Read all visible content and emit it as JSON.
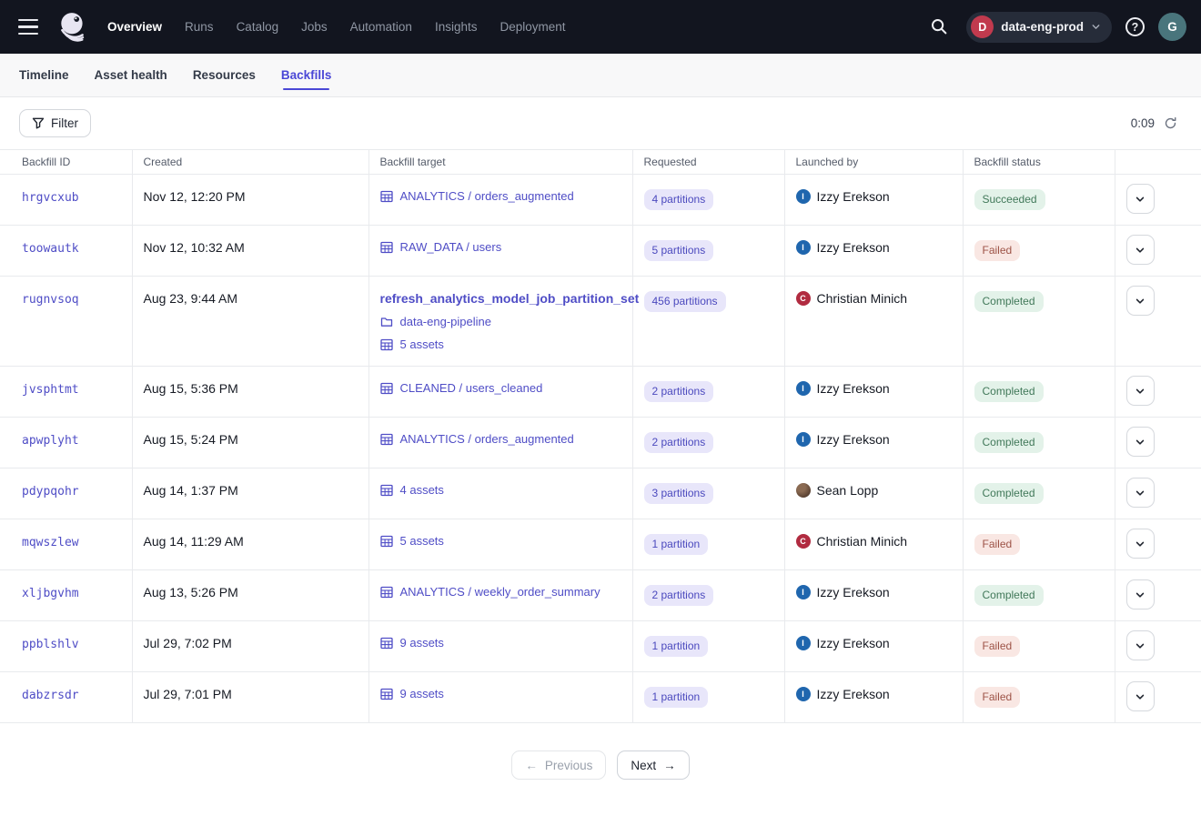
{
  "colors": {
    "topnav_bg": "#12151F",
    "accent": "#4A47D6",
    "link": "#4F4DC6",
    "requested_pill_bg": "#E8E6FA",
    "success_pill_bg": "#E3F2E9",
    "success_pill_text": "#42795A",
    "failed_pill_bg": "#F9E7E3",
    "failed_pill_text": "#9D5347",
    "deployment_badge": "#C13A4E",
    "user_avatar_bg": "#49757C"
  },
  "topnav": {
    "items": [
      {
        "label": "Overview",
        "active": true
      },
      {
        "label": "Runs",
        "active": false
      },
      {
        "label": "Catalog",
        "active": false
      },
      {
        "label": "Jobs",
        "active": false
      },
      {
        "label": "Automation",
        "active": false
      },
      {
        "label": "Insights",
        "active": false
      },
      {
        "label": "Deployment",
        "active": false
      }
    ],
    "deployment": {
      "initial": "D",
      "name": "data-eng-prod"
    },
    "avatar_initial": "G"
  },
  "tabs": [
    {
      "label": "Timeline",
      "active": false
    },
    {
      "label": "Asset health",
      "active": false
    },
    {
      "label": "Resources",
      "active": false
    },
    {
      "label": "Backfills",
      "active": true
    }
  ],
  "toolbar": {
    "filter_label": "Filter",
    "timer": "0:09"
  },
  "table": {
    "columns": [
      "Backfill ID",
      "Created",
      "Backfill target",
      "Requested",
      "Launched by",
      "Backfill status",
      ""
    ],
    "rows": [
      {
        "id": "hrgvcxub",
        "created": "Nov 12, 12:20 PM",
        "target": [
          {
            "icon": "asset-table",
            "text": "ANALYTICS / orders_augmented"
          }
        ],
        "requested": "4 partitions",
        "launched_by": {
          "name": "Izzy Erekson",
          "avatar": "initial",
          "initial": "I",
          "color": "#1F66AE"
        },
        "status": {
          "label": "Succeeded",
          "kind": "success"
        }
      },
      {
        "id": "toowautk",
        "created": "Nov 12, 10:32 AM",
        "target": [
          {
            "icon": "asset-table",
            "text": "RAW_DATA / users"
          }
        ],
        "requested": "5 partitions",
        "launched_by": {
          "name": "Izzy Erekson",
          "avatar": "initial",
          "initial": "I",
          "color": "#1F66AE"
        },
        "status": {
          "label": "Failed",
          "kind": "failed"
        }
      },
      {
        "id": "rugnvsoq",
        "created": "Aug 23, 9:44 AM",
        "target": [
          {
            "icon": null,
            "text": "refresh_analytics_model_job_partition_set",
            "bold": true
          },
          {
            "icon": "folder",
            "text": "data-eng-pipeline"
          },
          {
            "icon": "asset-table",
            "text": "5 assets"
          }
        ],
        "requested": "456 partitions",
        "launched_by": {
          "name": "Christian Minich",
          "avatar": "initial",
          "initial": "C",
          "color": "#B12B40"
        },
        "status": {
          "label": "Completed",
          "kind": "success"
        }
      },
      {
        "id": "jvsphtmt",
        "created": "Aug 15, 5:36 PM",
        "target": [
          {
            "icon": "asset-table",
            "text": "CLEANED / users_cleaned"
          }
        ],
        "requested": "2 partitions",
        "launched_by": {
          "name": "Izzy Erekson",
          "avatar": "initial",
          "initial": "I",
          "color": "#1F66AE"
        },
        "status": {
          "label": "Completed",
          "kind": "success"
        }
      },
      {
        "id": "apwplyht",
        "created": "Aug 15, 5:24 PM",
        "target": [
          {
            "icon": "asset-table",
            "text": "ANALYTICS / orders_augmented"
          }
        ],
        "requested": "2 partitions",
        "launched_by": {
          "name": "Izzy Erekson",
          "avatar": "initial",
          "initial": "I",
          "color": "#1F66AE"
        },
        "status": {
          "label": "Completed",
          "kind": "success"
        }
      },
      {
        "id": "pdypqohr",
        "created": "Aug 14, 1:37 PM",
        "target": [
          {
            "icon": "asset-table",
            "text": "4 assets"
          }
        ],
        "requested": "3 partitions",
        "launched_by": {
          "name": "Sean Lopp",
          "avatar": "photo"
        },
        "status": {
          "label": "Completed",
          "kind": "success"
        }
      },
      {
        "id": "mqwszlew",
        "created": "Aug 14, 11:29 AM",
        "target": [
          {
            "icon": "asset-table",
            "text": "5 assets"
          }
        ],
        "requested": "1 partition",
        "launched_by": {
          "name": "Christian Minich",
          "avatar": "initial",
          "initial": "C",
          "color": "#B12B40"
        },
        "status": {
          "label": "Failed",
          "kind": "failed"
        }
      },
      {
        "id": "xljbgvhm",
        "created": "Aug 13, 5:26 PM",
        "target": [
          {
            "icon": "asset-table",
            "text": "ANALYTICS / weekly_order_summary"
          }
        ],
        "requested": "2 partitions",
        "launched_by": {
          "name": "Izzy Erekson",
          "avatar": "initial",
          "initial": "I",
          "color": "#1F66AE"
        },
        "status": {
          "label": "Completed",
          "kind": "success"
        }
      },
      {
        "id": "ppblshlv",
        "created": "Jul 29, 7:02 PM",
        "target": [
          {
            "icon": "asset-table",
            "text": "9 assets"
          }
        ],
        "requested": "1 partition",
        "launched_by": {
          "name": "Izzy Erekson",
          "avatar": "initial",
          "initial": "I",
          "color": "#1F66AE"
        },
        "status": {
          "label": "Failed",
          "kind": "failed"
        }
      },
      {
        "id": "dabzrsdr",
        "created": "Jul 29, 7:01 PM",
        "target": [
          {
            "icon": "asset-table",
            "text": "9 assets"
          }
        ],
        "requested": "1 partition",
        "launched_by": {
          "name": "Izzy Erekson",
          "avatar": "initial",
          "initial": "I",
          "color": "#1F66AE"
        },
        "status": {
          "label": "Failed",
          "kind": "failed"
        }
      }
    ]
  },
  "pagination": {
    "previous_label": "Previous",
    "next_label": "Next",
    "previous_enabled": false,
    "next_enabled": true
  }
}
